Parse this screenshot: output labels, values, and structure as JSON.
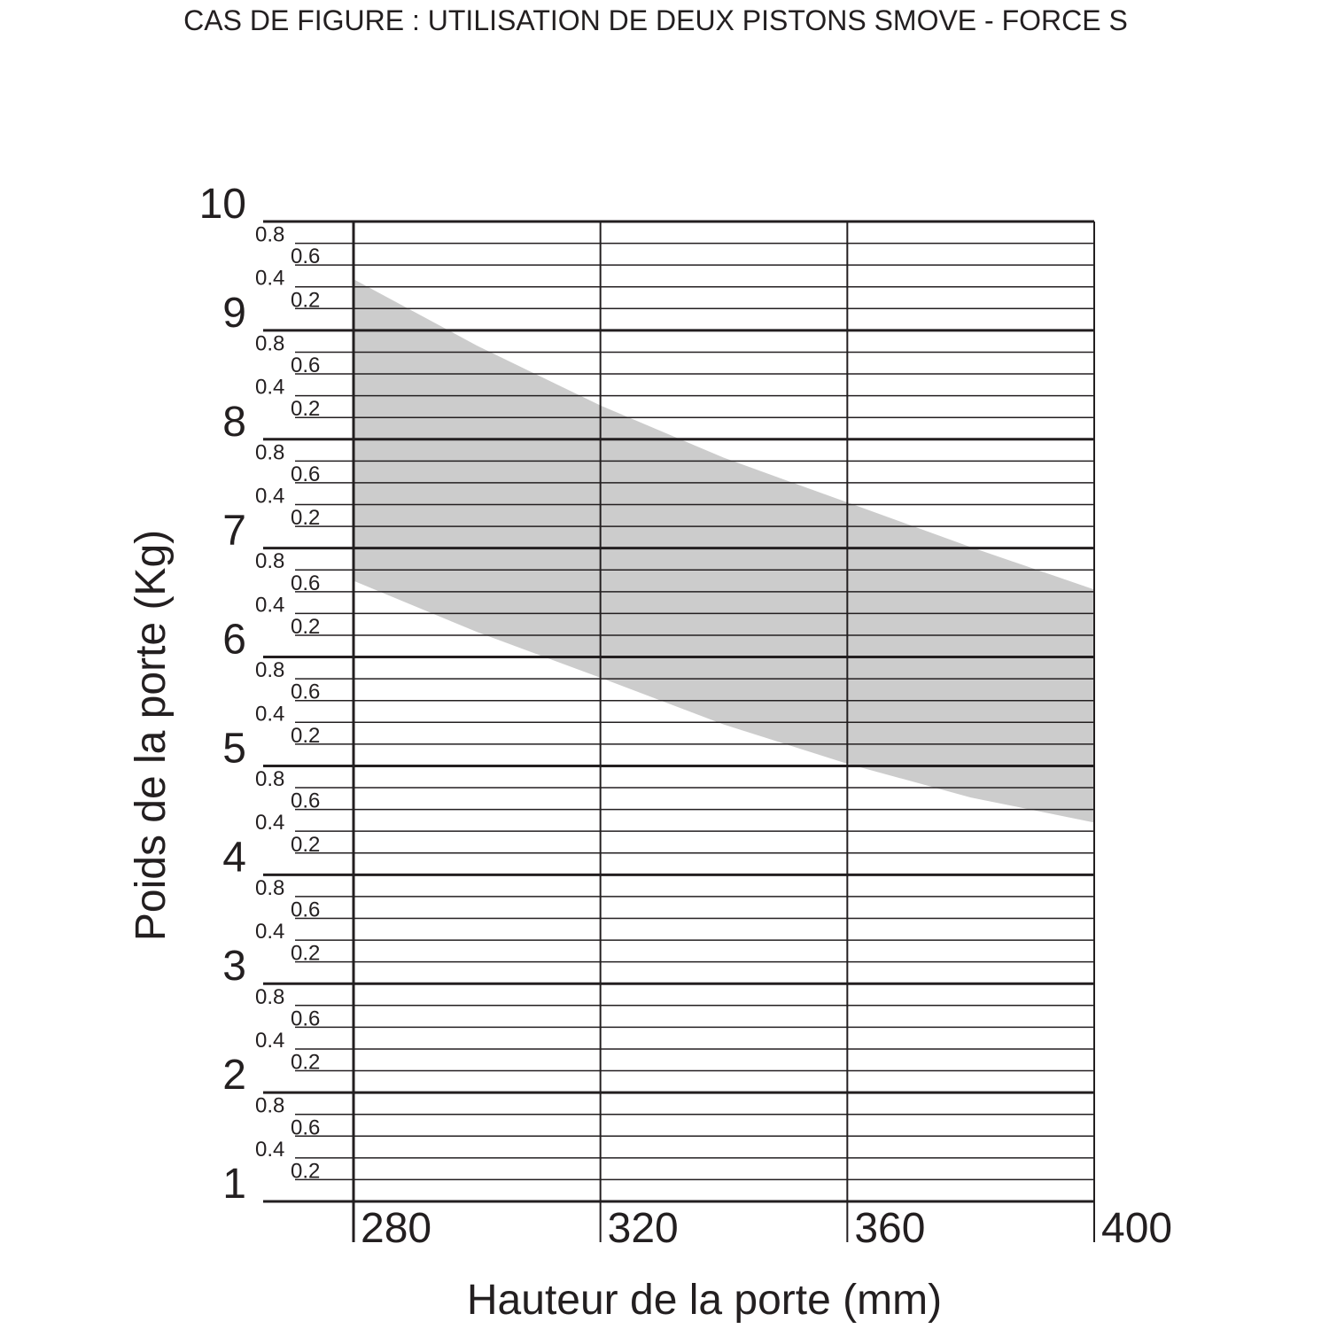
{
  "chart_data": {
    "type": "band",
    "title": "CAS DE FIGURE : UTILISATION DE DEUX PISTONS SMOVE - FORCE S",
    "x_label": "Hauteur de la porte (mm)",
    "y_label": "Poids de la porte (Kg)",
    "x": [
      280,
      300,
      320,
      340,
      360,
      380,
      400
    ],
    "high": [
      9.47,
      8.86,
      8.31,
      7.83,
      7.42,
      7.01,
      6.62
    ],
    "low": [
      6.7,
      6.23,
      5.81,
      5.38,
      5.02,
      4.71,
      4.48
    ],
    "color": "#cccccc",
    "xlim": [
      280,
      400
    ],
    "xticks": [
      280,
      320,
      360,
      400
    ],
    "ylim": [
      1,
      10
    ],
    "yticks": [
      1,
      {
        "value": 1.2,
        "label": "0.2"
      },
      {
        "value": 1.4,
        "label": "0.4"
      },
      {
        "value": 1.6,
        "label": "0.6"
      },
      {
        "value": 1.8,
        "label": "0.8"
      },
      2,
      {
        "value": 2.2,
        "label": "0.2"
      },
      {
        "value": 2.4,
        "label": "0.4"
      },
      {
        "value": 2.6,
        "label": "0.6"
      },
      {
        "value": 2.8,
        "label": "0.8"
      },
      3,
      {
        "value": 3.2,
        "label": "0.2"
      },
      {
        "value": 3.4,
        "label": "0.4"
      },
      {
        "value": 3.6,
        "label": "0.6"
      },
      {
        "value": 3.8,
        "label": "0.8"
      },
      4,
      {
        "value": 4.2,
        "label": "0.2"
      },
      {
        "value": 4.4,
        "label": "0.4"
      },
      {
        "value": 4.6,
        "label": "0.6"
      },
      {
        "value": 4.8,
        "label": "0.8"
      },
      5,
      {
        "value": 5.2,
        "label": "0.2"
      },
      {
        "value": 5.4,
        "label": "0.4"
      },
      {
        "value": 5.6,
        "label": "0.6"
      },
      {
        "value": 5.8,
        "label": "0.8"
      },
      6,
      {
        "value": 6.2,
        "label": "0.2"
      },
      {
        "value": 6.4,
        "label": "0.4"
      },
      {
        "value": 6.6,
        "label": "0.6"
      },
      {
        "value": 6.8,
        "label": "0.8"
      },
      7,
      {
        "value": 7.2,
        "label": "0.2"
      },
      {
        "value": 7.4,
        "label": "0.4"
      },
      {
        "value": 7.6,
        "label": "0.6"
      },
      {
        "value": 7.8,
        "label": "0.8"
      },
      8,
      {
        "value": 8.2,
        "label": "0.2"
      },
      {
        "value": 8.4,
        "label": "0.4"
      },
      {
        "value": 8.6,
        "label": "0.6"
      },
      {
        "value": 8.8,
        "label": "0.8"
      },
      9,
      {
        "value": 9.2,
        "label": "0.2"
      },
      {
        "value": 9.4,
        "label": "0.4"
      },
      {
        "value": 9.6,
        "label": "0.6"
      },
      {
        "value": 9.8,
        "label": "0.8"
      },
      10
    ],
    "grid": true
  }
}
